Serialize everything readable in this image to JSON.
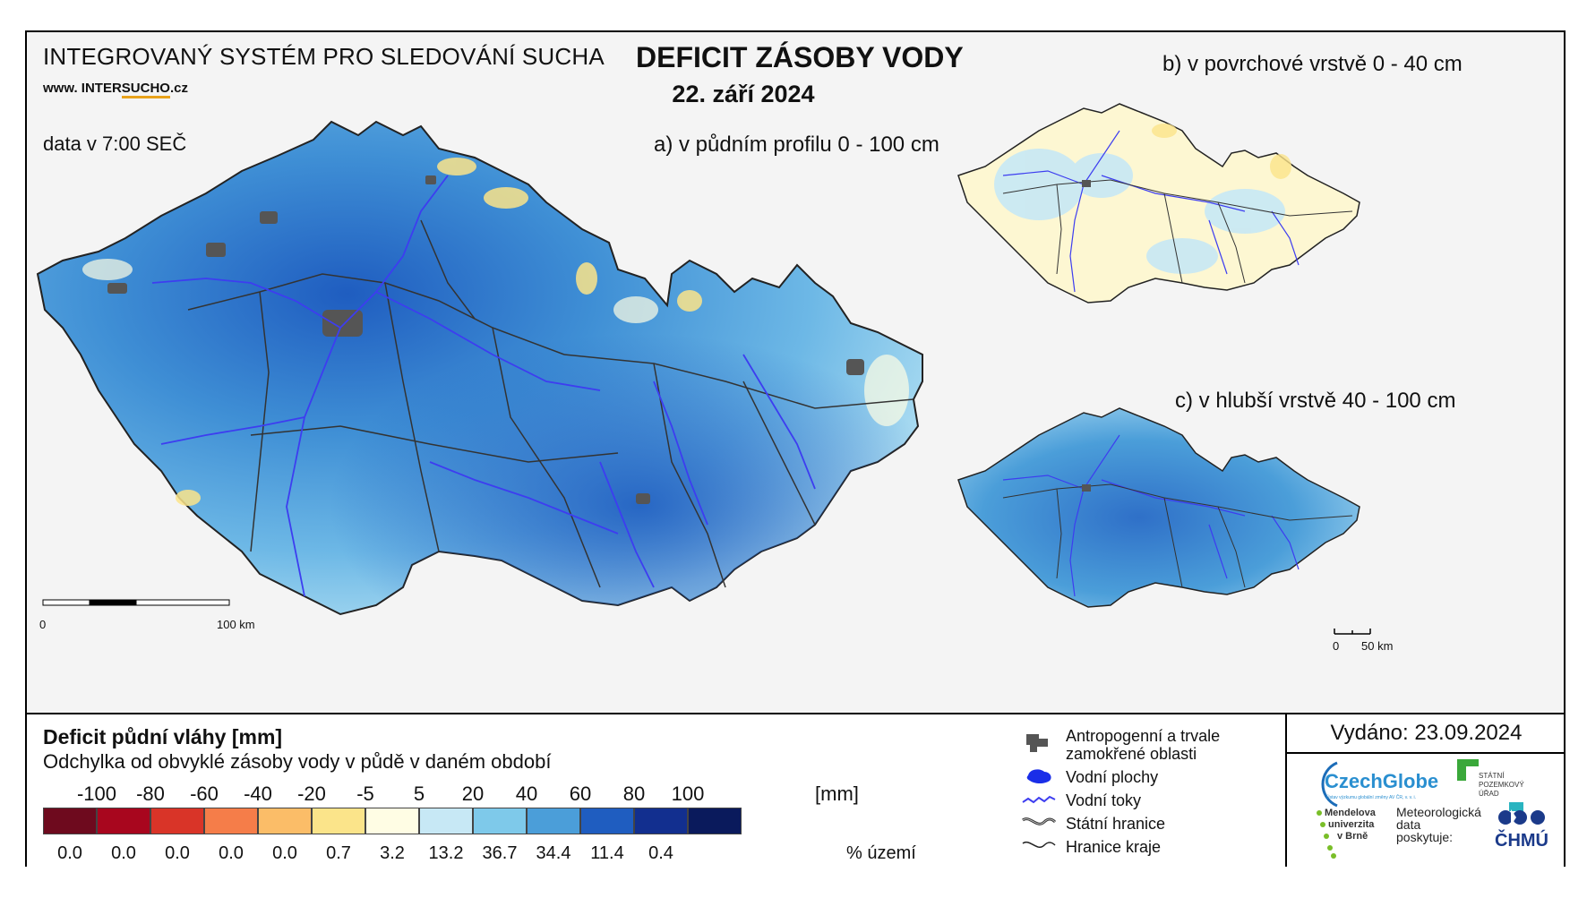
{
  "header": {
    "system_title": "INTEGROVANÝ SYSTÉM PRO SLEDOVÁNÍ SUCHA",
    "web_prefix": "www. INTER",
    "web_underlined": "SUCHO",
    "web_suffix": ".cz",
    "data_time": "data v 7:00 SEČ",
    "main_title": "DEFICIT ZÁSOBY VODY",
    "date": "22. září 2024"
  },
  "maps": {
    "a_label": "a) v půdním profilu 0 - 100 cm",
    "b_label": "b) v povrchové vrstvě 0 - 40 cm",
    "c_label": "c) v hlubší vrstvě 40 - 100 cm",
    "scale_main": {
      "start": "0",
      "end": "100 km"
    },
    "scale_small": {
      "start": "0",
      "end": "50 km"
    }
  },
  "legend": {
    "title": "Deficit půdní vláhy  [mm]",
    "subtitle": "Odchylka od obvyklé zásoby vody v půdě v daném období",
    "ticks": [
      "-100",
      "-80",
      "-60",
      "-40",
      "-20",
      "-5",
      "5",
      "20",
      "40",
      "60",
      "80",
      "100"
    ],
    "unit_mm": "[mm]",
    "colors": [
      "#6e0a1e",
      "#a8061e",
      "#d93428",
      "#f57d49",
      "#fbbd68",
      "#fbe48a",
      "#fffde4",
      "#c7e8f5",
      "#7ec9ea",
      "#4b9ed9",
      "#1f5dc0",
      "#122f8f",
      "#0a1a5c"
    ],
    "percent_values": [
      "0.0",
      "0.0",
      "0.0",
      "0.0",
      "0.0",
      "0.7",
      "3.2",
      "13.2",
      "36.7",
      "34.4",
      "11.4",
      "0.4"
    ],
    "unit_pct": "% území"
  },
  "key": {
    "anthropogenic_line1": "Antropogenní a trvale",
    "anthropogenic_line2": "zamokřené oblasti",
    "water_bodies": "Vodní plochy",
    "rivers": "Vodní toky",
    "state_border": "Státní hranice",
    "region_border": "Hranice kraje"
  },
  "issued": "Vydáno: 23.09.2024",
  "logos": {
    "czechglobe": "CzechGlobe",
    "czechglobe_sub": "Ústav výzkumu globální změny AV ČR, v. v. i.",
    "spu_line1": "STÁTNÍ",
    "spu_line2": "POZEMKOVÝ",
    "spu_line3": "ÚŘAD",
    "mendel_line1": "Mendelova",
    "mendel_line2": "univerzita",
    "mendel_line3": "v Brně",
    "meteo_line1": "Meteorologická",
    "meteo_line2": "data",
    "meteo_line3": "poskytuje:",
    "chmu": "ČHMÚ"
  }
}
